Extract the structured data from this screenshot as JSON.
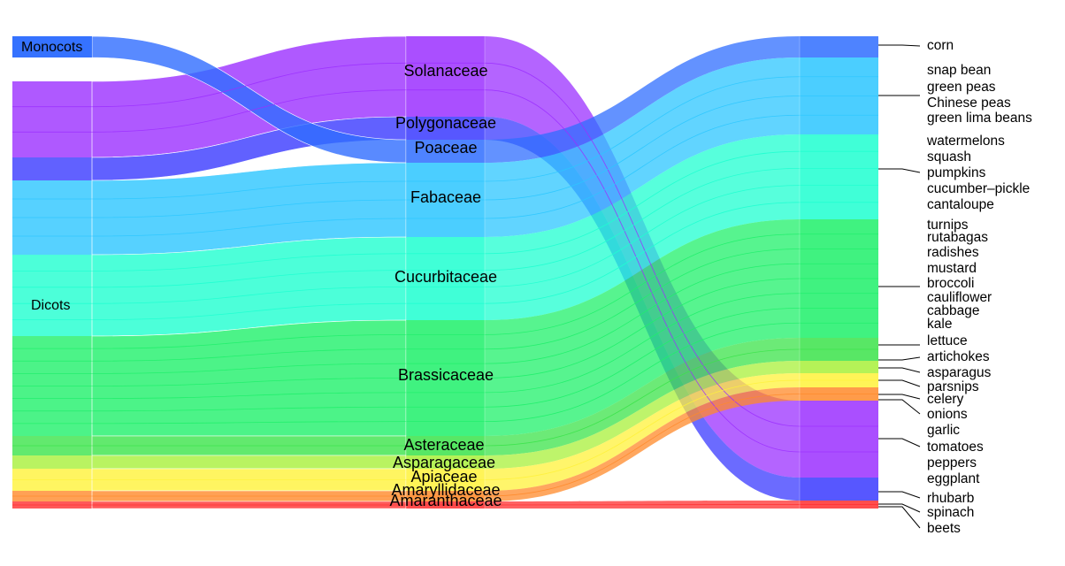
{
  "classes": [
    {
      "id": "monocots",
      "label": "Monocots",
      "color": "#2f5cff"
    },
    {
      "id": "dicots",
      "label": "Dicots",
      "color": "#2f5cff"
    }
  ],
  "families": [
    {
      "id": "solanaceae",
      "label": "Solanaceae",
      "color": "#9b30ff",
      "class": "dicots",
      "crops": [
        "tomatoes",
        "peppers",
        "eggplant"
      ]
    },
    {
      "id": "polygonaceae",
      "label": "Polygonaceae",
      "color": "#3a3aff",
      "class": "dicots",
      "crops": [
        "rhubarb"
      ]
    },
    {
      "id": "poaceae",
      "label": "Poaceae",
      "color": "#2f6dff",
      "class": "monocots",
      "crops": [
        "corn"
      ]
    },
    {
      "id": "fabaceae",
      "label": "Fabaceae",
      "color": "#2cc6ff",
      "class": "dicots",
      "crops": [
        "snap bean",
        "green peas",
        "Chinese peas",
        "green lima beans"
      ]
    },
    {
      "id": "cucurbitaceae",
      "label": "Cucurbitaceae",
      "color": "#1fffd0",
      "class": "dicots",
      "crops": [
        "watermelons",
        "squash",
        "pumpkins",
        "cucumber–pickle",
        "cantaloupe"
      ]
    },
    {
      "id": "brassicaceae",
      "label": "Brassicaceae",
      "color": "#1ff06a",
      "class": "dicots",
      "crops": [
        "turnips",
        "rutabagas",
        "radishes",
        "mustard",
        "broccoli",
        "cauliflower",
        "cabbage",
        "kale"
      ]
    },
    {
      "id": "asteraceae",
      "label": "Asteraceae",
      "color": "#3be34a",
      "class": "dicots",
      "crops": [
        "lettuce",
        "artichokes"
      ]
    },
    {
      "id": "asparagaceae",
      "label": "Asparagaceae",
      "color": "#a8f03a",
      "class": "dicots",
      "crops": [
        "asparagus"
      ]
    },
    {
      "id": "apiaceae",
      "label": "Apiaceae",
      "color": "#fff23a",
      "class": "dicots",
      "crops": [
        "parsnips",
        "celery"
      ]
    },
    {
      "id": "amaryllidaceae",
      "label": "Amaryllidaceae",
      "color": "#ff8a2a",
      "class": "dicots",
      "crops": [
        "onions",
        "garlic"
      ]
    },
    {
      "id": "amaranthaceae",
      "label": "Amaranthaceae",
      "color": "#ff2f2f",
      "class": "dicots",
      "crops": [
        "spinach",
        "beets"
      ]
    }
  ],
  "crop_labels": [
    "corn",
    "snap bean",
    "green peas",
    "Chinese peas",
    "green lima beans",
    "watermelons",
    "squash",
    "pumpkins",
    "cucumber–pickle",
    "cantaloupe",
    "turnips",
    "rutabagas",
    "radishes",
    "mustard",
    "broccoli",
    "cauliflower",
    "cabbage",
    "kale",
    "lettuce",
    "artichokes",
    "asparagus",
    "parsnips",
    "celery",
    "onions",
    "garlic",
    "tomatoes",
    "peppers",
    "eggplant",
    "rhubarb",
    "spinach",
    "beets"
  ]
}
